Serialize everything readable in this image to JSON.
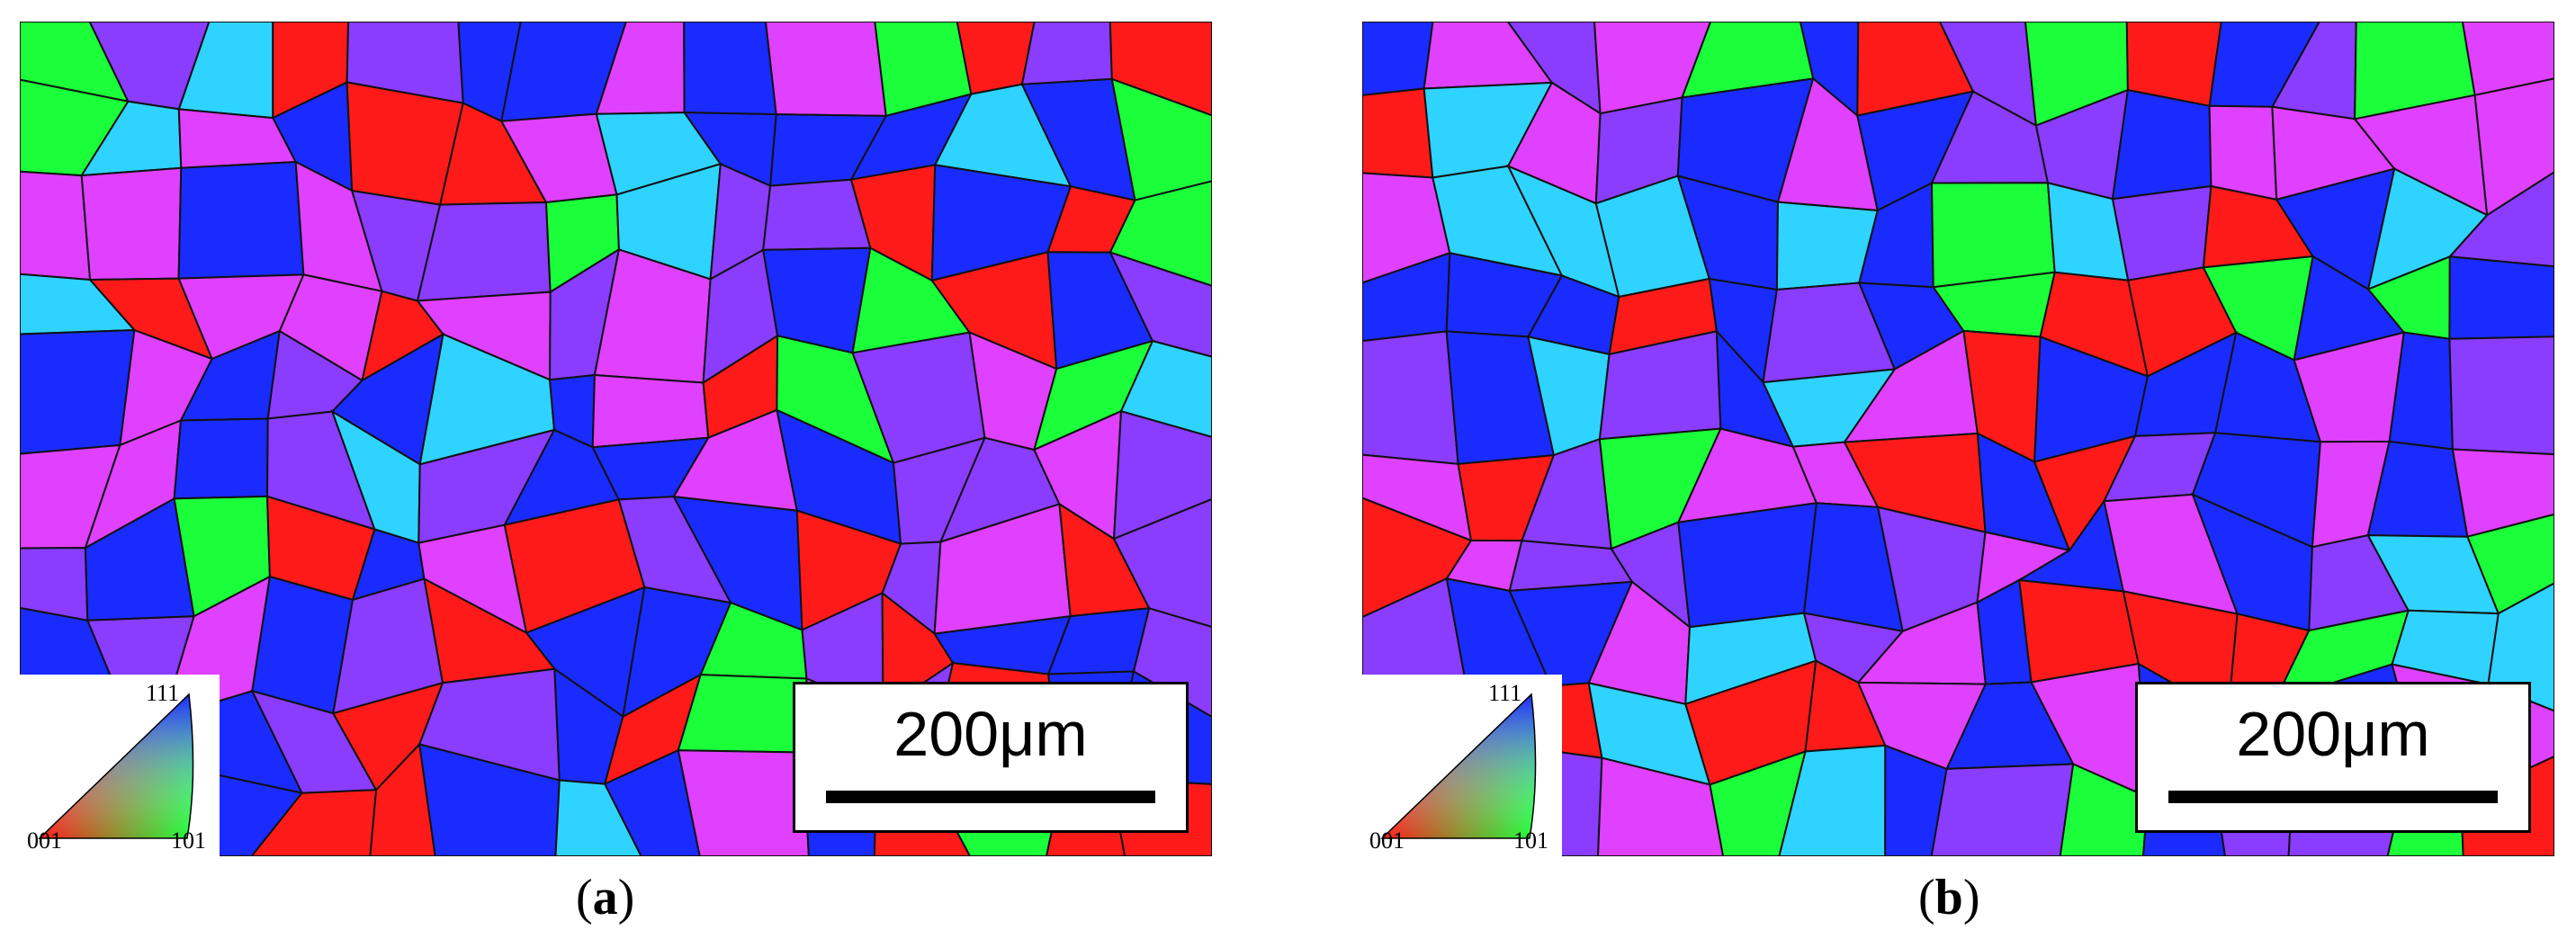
{
  "panels": [
    {
      "id": "a",
      "caption_open": "(",
      "caption_letter": "a",
      "caption_close": ")",
      "scale_label": "200μm",
      "ipf_labels": {
        "top": "111",
        "left": "001",
        "right": "101"
      },
      "seed": 17
    },
    {
      "id": "b",
      "caption_open": "(",
      "caption_letter": "b",
      "caption_close": ")",
      "scale_label": "200μm",
      "ipf_labels": {
        "top": "111",
        "left": "001",
        "right": "101"
      },
      "seed": 53
    }
  ],
  "colors": {
    "red_001": "#ff1a1a",
    "green_101": "#1aff3a",
    "blue_111": "#1a2bff",
    "magenta": "#e040ff",
    "purple": "#8a3cff",
    "cyan": "#2fd3ff",
    "boundary": "#111111"
  }
}
